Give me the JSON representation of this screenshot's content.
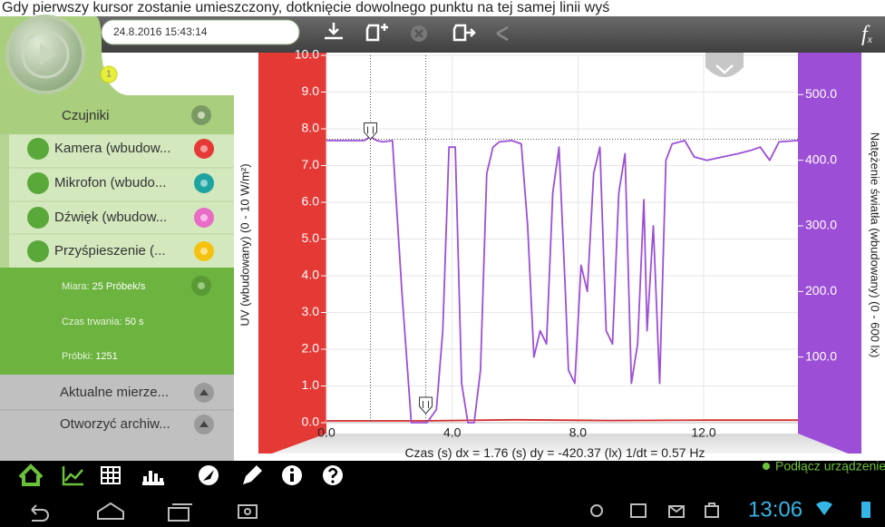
{
  "caption": "Gdy pierwszy kursor zostanie umieszczony, dotknięcie dowolnego punktu na tej samej linii wyś",
  "toolbar": {
    "datetime": "24.8.2016 15:43:14",
    "badge": "1",
    "function_icon": {
      "main": "f",
      "sub": "x"
    }
  },
  "sidebar": {
    "header": "Czujniki",
    "sensors": [
      "Kamera (wbudow...",
      "Mikrofon (wbudo...",
      "Dźwięk (wbudow...",
      "Przyśpieszenie (..."
    ],
    "settings": [
      {
        "label": "Miara:",
        "value": "25 Próbek/s"
      },
      {
        "label": "Czas trwania:",
        "value": "50 s"
      },
      {
        "label": "Próbki:",
        "value": "1251"
      }
    ],
    "actions": [
      "Aktualne mierze...",
      "Otworzyć archiw..."
    ]
  },
  "chart_data": {
    "type": "line",
    "ylabel": "UV (wbudowany) (0 - 10 W/m²)",
    "y2label": "Natężenie światła (wbudowany) (0 - 600 lx)",
    "xlabel": "Czas (s)",
    "readout": "dx = 1.76 (s) dy = -420.37 (lx) 1/dt = 0.57 Hz",
    "xlim": [
      0,
      15
    ],
    "xticks": [
      {
        "value": 0,
        "label": "0.0"
      },
      {
        "value": 4,
        "label": "4.0"
      },
      {
        "value": 8,
        "label": "8.0"
      },
      {
        "value": 12,
        "label": "12.0"
      }
    ],
    "ylim": [
      0,
      10
    ],
    "yticks": [
      {
        "value": 0,
        "label": "0.0"
      },
      {
        "value": 1,
        "label": "1.0"
      },
      {
        "value": 2,
        "label": "2.0"
      },
      {
        "value": 3,
        "label": "3.0"
      },
      {
        "value": 4,
        "label": "4.0"
      },
      {
        "value": 5,
        "label": "5.0"
      },
      {
        "value": 6,
        "label": "6.0"
      },
      {
        "value": 7,
        "label": "7.0"
      },
      {
        "value": 8,
        "label": "8.0"
      },
      {
        "value": 9,
        "label": "9.0"
      },
      {
        "value": 10,
        "label": "10.0"
      }
    ],
    "y2lim": [
      0,
      600
    ],
    "y2ticks": [
      {
        "value": 100,
        "label": "100.0"
      },
      {
        "value": 200,
        "label": "200.0"
      },
      {
        "value": 300,
        "label": "300.0"
      },
      {
        "value": 400,
        "label": "400.0"
      },
      {
        "value": 500,
        "label": "500.0"
      }
    ],
    "grid": true,
    "cursors": [
      1.4,
      3.16
    ],
    "cursor_level": 432,
    "series": [
      {
        "name": "UV",
        "color": "#d32f2f",
        "x": [
          0,
          3,
          6,
          9,
          12,
          15
        ],
        "values": [
          0.05,
          0.05,
          0.08,
          0.06,
          0.07,
          0.07
        ]
      },
      {
        "name": "Natężenie światła",
        "color": "#9c4fd6",
        "axis": "y2",
        "x": [
          0.0,
          1.2,
          1.4,
          1.6,
          1.8,
          2.1,
          2.4,
          2.7,
          3.0,
          3.2,
          3.5,
          3.7,
          3.9,
          4.1,
          4.3,
          4.5,
          4.7,
          4.9,
          5.1,
          5.3,
          5.5,
          5.9,
          6.2,
          6.4,
          6.6,
          6.8,
          7.0,
          7.2,
          7.4,
          7.6,
          7.7,
          7.9,
          8.1,
          8.3,
          8.5,
          8.7,
          8.9,
          9.1,
          9.3,
          9.5,
          9.7,
          9.9,
          10.1,
          10.2,
          10.4,
          10.6,
          10.8,
          11.0,
          11.4,
          11.7,
          12.1,
          12.6,
          13.1,
          13.5,
          13.8,
          14.1,
          14.4,
          15.0
        ],
        "values": [
          430,
          430,
          436,
          430,
          428,
          430,
          200,
          0,
          0,
          0,
          20,
          140,
          420,
          420,
          60,
          0,
          0,
          80,
          380,
          420,
          428,
          430,
          425,
          300,
          100,
          140,
          120,
          350,
          420,
          200,
          80,
          60,
          240,
          200,
          380,
          420,
          140,
          120,
          350,
          410,
          60,
          120,
          340,
          140,
          300,
          60,
          400,
          425,
          430,
          405,
          400,
          405,
          410,
          415,
          420,
          400,
          428,
          430
        ]
      }
    ]
  },
  "status": {
    "connect": "Podłącz urządzenie",
    "clock": "13:06"
  }
}
